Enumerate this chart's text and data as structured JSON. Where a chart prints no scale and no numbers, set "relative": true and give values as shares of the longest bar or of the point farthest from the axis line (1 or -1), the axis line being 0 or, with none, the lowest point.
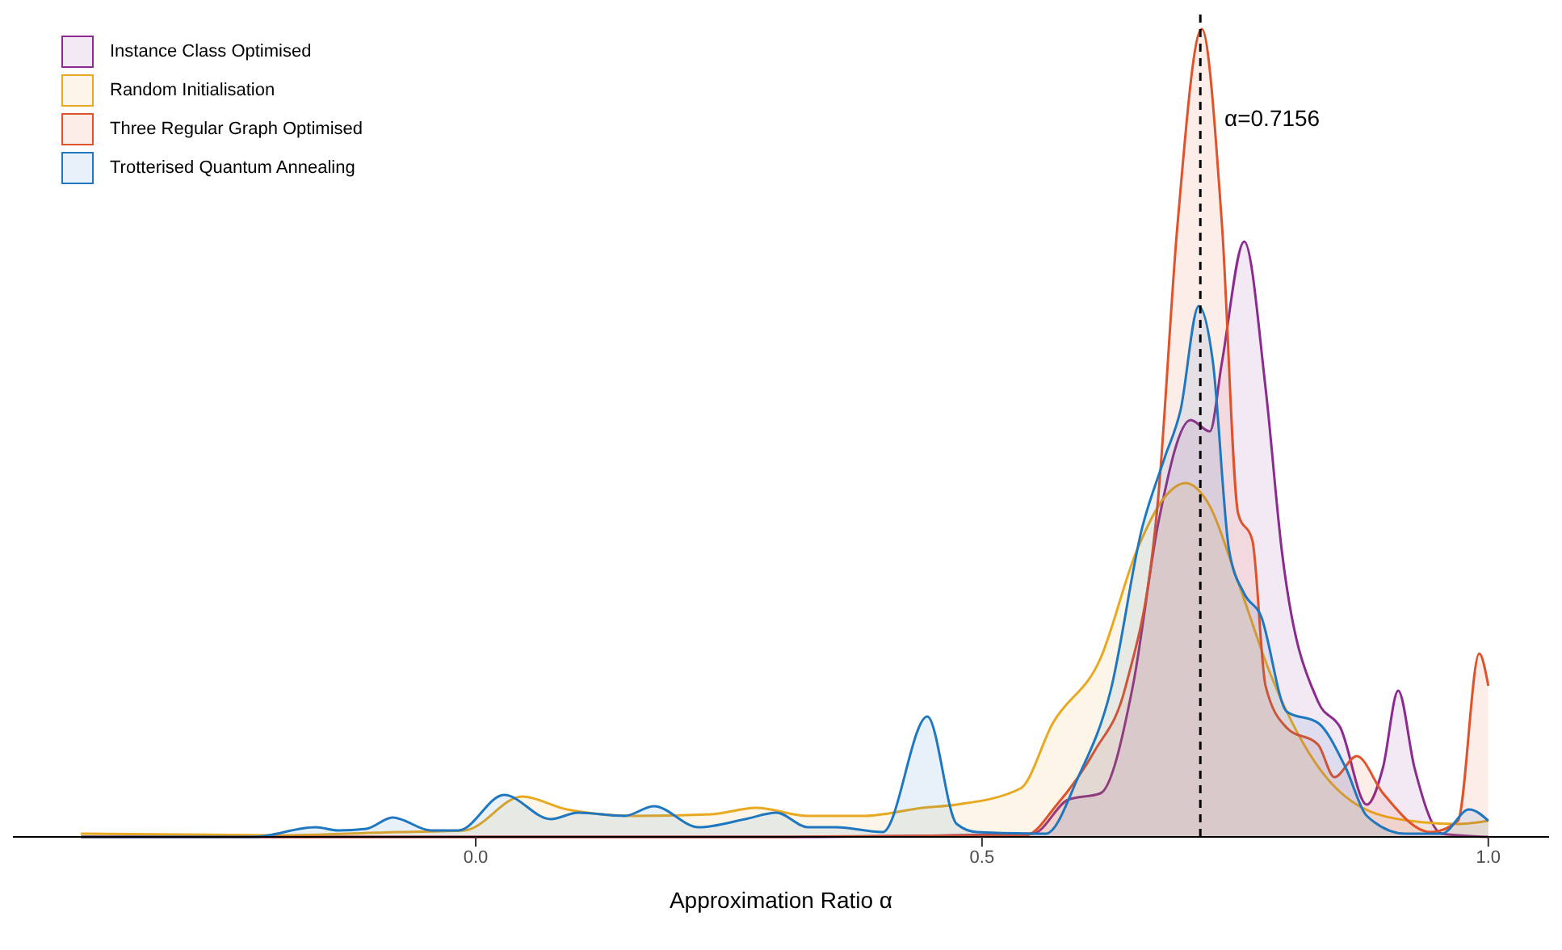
{
  "chart_data": {
    "type": "area",
    "relative": true,
    "xlabel": "Approximation Ratio α",
    "xlim": [
      -0.457,
      1.06
    ],
    "xticks": [
      {
        "value": 0,
        "label": "0.0"
      },
      {
        "value": 0.5,
        "label": "0.5"
      },
      {
        "value": 1,
        "label": "1.0"
      }
    ],
    "legend": "top left",
    "ref_lines": [
      {
        "axis": "x",
        "value": 0.7156,
        "label": "α=0.7156",
        "color": "#000000",
        "line_style": "dashed"
      }
    ],
    "series": [
      {
        "name": "Instance Class Optimised",
        "color": "#8b2a8f",
        "x": [
          -0.39,
          0.3,
          0.55,
          0.585,
          0.617,
          0.649,
          0.674,
          0.706,
          0.725,
          0.737,
          0.759,
          0.78,
          0.796,
          0.832,
          0.854,
          0.88,
          0.896,
          0.911,
          0.927,
          0.954,
          1.0
        ],
        "values": [
          0,
          0,
          0.004,
          0.046,
          0.054,
          0.187,
          0.388,
          0.516,
          0.502,
          0.588,
          0.737,
          0.556,
          0.355,
          0.167,
          0.135,
          0.04,
          0.086,
          0.181,
          0.086,
          0.004,
          0
        ]
      },
      {
        "name": "Random Initialisation",
        "color": "#e8a820",
        "x": [
          -0.39,
          -0.2,
          -0.077,
          -0.011,
          0.046,
          0.09,
          0.158,
          0.233,
          0.277,
          0.328,
          0.384,
          0.441,
          0.475,
          0.538,
          0.57,
          0.617,
          0.653,
          0.68,
          0.701,
          0.722,
          0.753,
          0.785,
          0.828,
          0.87,
          0.922,
          0.97,
          1.0
        ],
        "values": [
          0.004,
          0.002,
          0.006,
          0.008,
          0.05,
          0.034,
          0.026,
          0.028,
          0.036,
          0.026,
          0.026,
          0.036,
          0.04,
          0.06,
          0.141,
          0.221,
          0.355,
          0.42,
          0.438,
          0.416,
          0.315,
          0.201,
          0.094,
          0.04,
          0.02,
          0.016,
          0.02
        ]
      },
      {
        "name": "Three Regular Graph Optimised",
        "color": "#e0522a",
        "x": [
          -0.39,
          0.3,
          0.5,
          0.543,
          0.574,
          0.611,
          0.642,
          0.674,
          0.693,
          0.717,
          0.737,
          0.753,
          0.767,
          0.78,
          0.801,
          0.832,
          0.848,
          0.87,
          0.896,
          0.943,
          0.97,
          0.991,
          1.0
        ],
        "values": [
          0,
          0,
          0.002,
          0.002,
          0.04,
          0.106,
          0.187,
          0.42,
          0.757,
          1,
          0.757,
          0.4,
          0.367,
          0.187,
          0.135,
          0.114,
          0.074,
          0.1,
          0.054,
          0.006,
          0.02,
          0.227,
          0.187
        ]
      },
      {
        "name": "Trotterised Quantum Annealing",
        "color": "#1f77c0",
        "x": [
          -0.39,
          -0.22,
          -0.158,
          -0.136,
          -0.108,
          -0.082,
          -0.044,
          -0.017,
          0.028,
          0.074,
          0.101,
          0.147,
          0.176,
          0.22,
          0.266,
          0.297,
          0.328,
          0.356,
          0.402,
          0.446,
          0.475,
          0.495,
          0.563,
          0.595,
          0.627,
          0.658,
          0.68,
          0.696,
          0.714,
          0.728,
          0.744,
          0.759,
          0.775,
          0.801,
          0.832,
          0.859,
          0.88,
          0.918,
          0.954,
          0.981,
          1.0
        ],
        "values": [
          0,
          0,
          0.012,
          0.008,
          0.01,
          0.024,
          0.008,
          0.008,
          0.052,
          0.022,
          0.03,
          0.026,
          0.038,
          0.012,
          0.022,
          0.03,
          0.012,
          0.012,
          0.006,
          0.149,
          0.016,
          0.006,
          0.004,
          0.074,
          0.181,
          0.382,
          0.468,
          0.528,
          0.657,
          0.588,
          0.355,
          0.301,
          0.275,
          0.155,
          0.141,
          0.086,
          0.026,
          0.004,
          0.004,
          0.034,
          0.02
        ]
      }
    ]
  }
}
